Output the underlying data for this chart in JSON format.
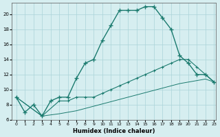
{
  "xlabel": "Humidex (Indice chaleur)",
  "background_color": "#d6eef0",
  "grid_color": "#aad4d8",
  "line_color": "#1a7a6e",
  "xlim": [
    0,
    23
  ],
  "ylim": [
    6,
    21.5
  ],
  "yticks": [
    6,
    8,
    10,
    12,
    14,
    16,
    18,
    20
  ],
  "xticks": [
    0,
    1,
    2,
    3,
    4,
    5,
    6,
    7,
    8,
    9,
    10,
    11,
    12,
    13,
    14,
    15,
    16,
    17,
    18,
    19,
    20,
    21,
    22,
    23
  ],
  "curve1_x": [
    0,
    1,
    2,
    3,
    4,
    5,
    6,
    7,
    8,
    9,
    10,
    11,
    12,
    13,
    14,
    15,
    16,
    17,
    18,
    19,
    20,
    21,
    22,
    23
  ],
  "curve1_y": [
    9.0,
    7.0,
    8.0,
    6.5,
    8.5,
    9.0,
    9.0,
    11.5,
    13.5,
    14.0,
    16.5,
    18.5,
    20.5,
    20.5,
    20.5,
    21.0,
    21.0,
    19.5,
    18.0,
    14.5,
    13.5,
    12.0,
    12.0,
    11.0
  ],
  "curve2_x": [
    0,
    3,
    5,
    6,
    7,
    8,
    9,
    10,
    11,
    12,
    13,
    14,
    15,
    16,
    17,
    18,
    19,
    20,
    21,
    22,
    23
  ],
  "curve2_y": [
    9.0,
    6.5,
    8.5,
    8.5,
    9.0,
    9.0,
    9.0,
    9.5,
    10.0,
    10.5,
    11.0,
    11.5,
    12.0,
    12.5,
    13.0,
    13.5,
    14.0,
    14.0,
    13.0,
    12.0,
    11.0
  ],
  "curve3_x": [
    0,
    3,
    5,
    6,
    7,
    8,
    9,
    10,
    11,
    12,
    13,
    14,
    15,
    16,
    17,
    18,
    19,
    20,
    21,
    22,
    23
  ],
  "curve3_y": [
    9.0,
    6.5,
    6.8,
    7.0,
    7.2,
    7.5,
    7.8,
    8.1,
    8.4,
    8.7,
    9.0,
    9.3,
    9.6,
    9.9,
    10.2,
    10.5,
    10.8,
    11.0,
    11.2,
    11.4,
    11.0
  ]
}
